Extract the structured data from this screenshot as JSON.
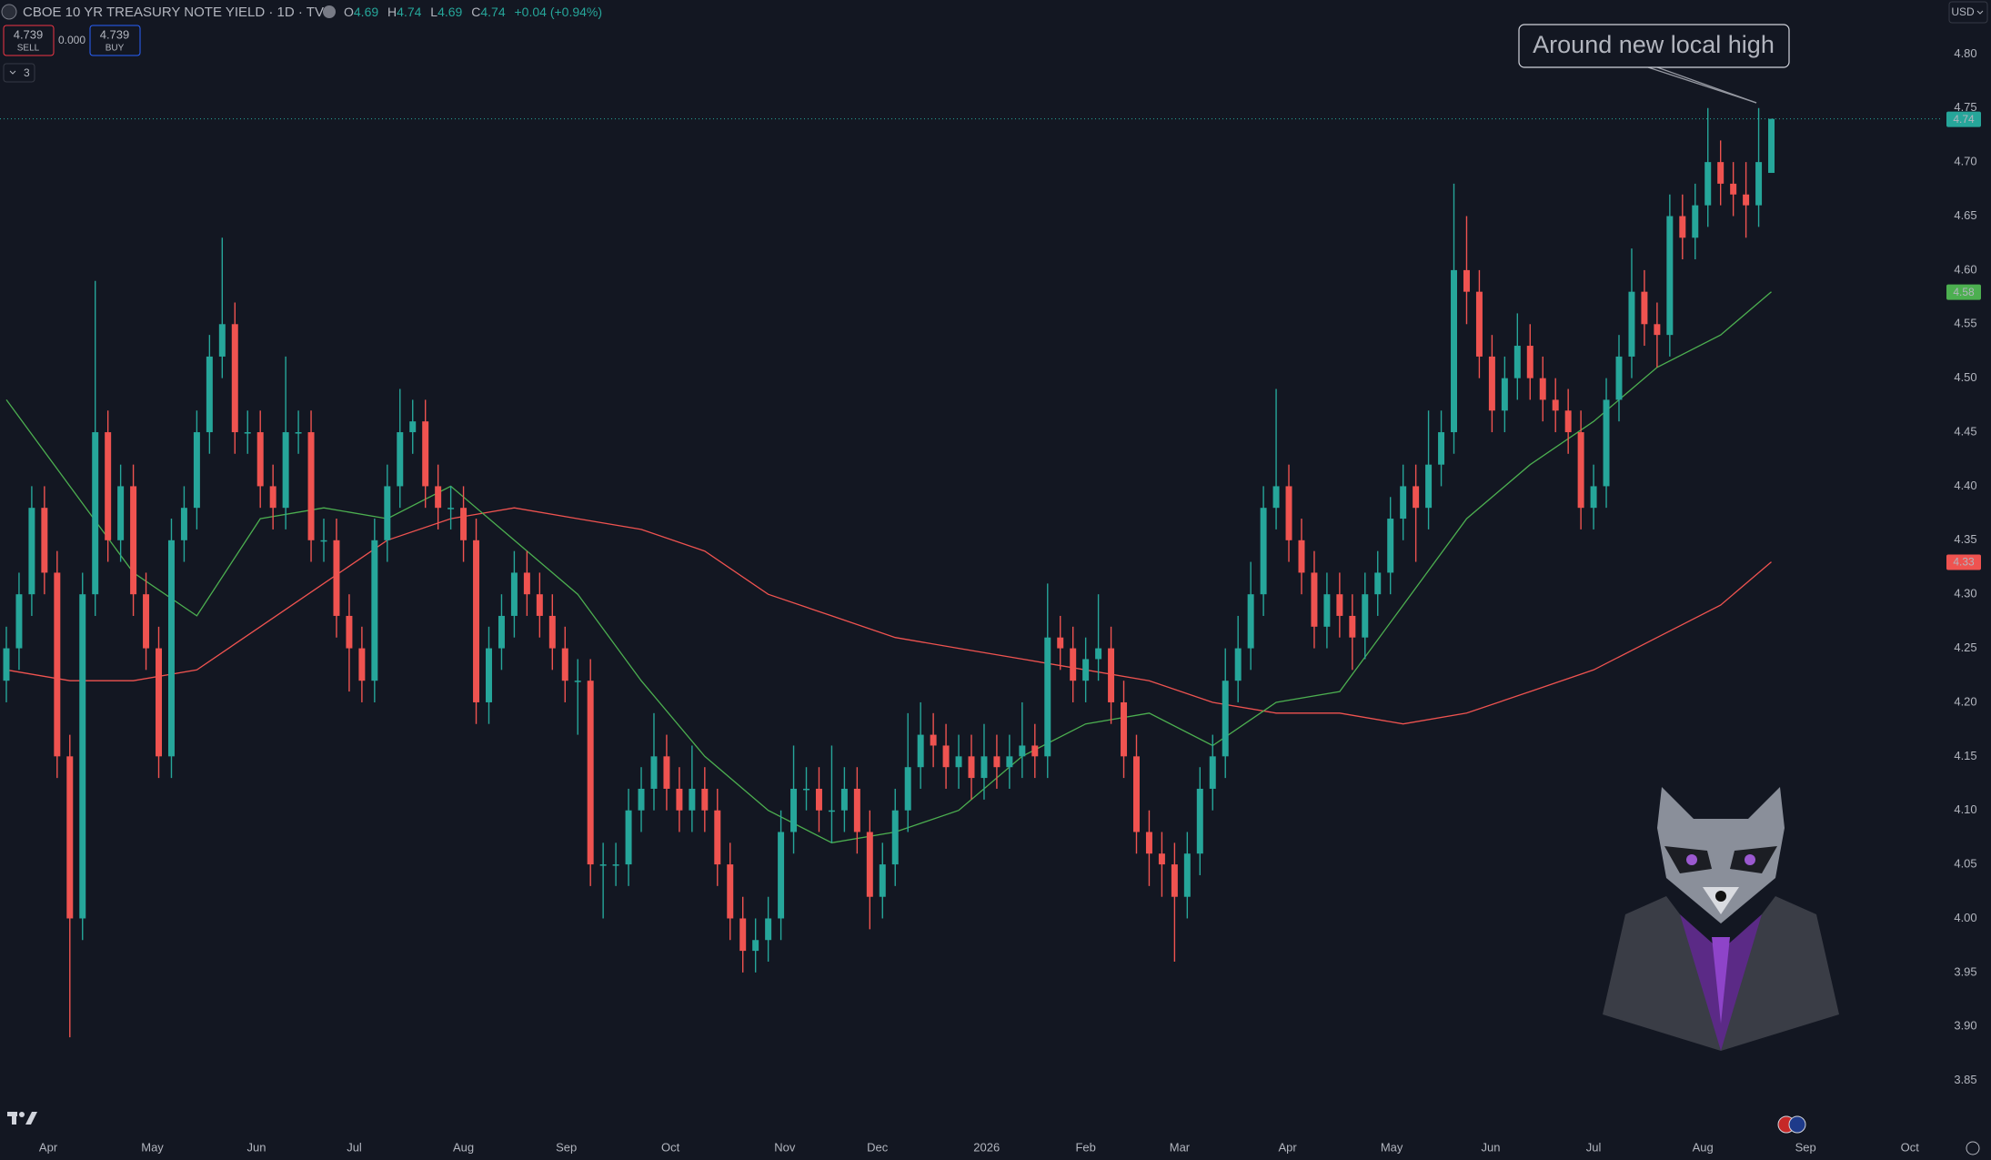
{
  "header": {
    "symbol": "CBOE 10 YR TREASURY NOTE YIELD · 1D · TVC",
    "ohlc_labels": [
      "O",
      "H",
      "L",
      "C"
    ],
    "change": "+0.04 (+0.94%)",
    "sell_price": "4.739",
    "sell_label": "SELL",
    "spread": "0.000",
    "buy_price": "4.739",
    "buy_label": "BUY",
    "indicators_count": "3",
    "currency": "USD"
  },
  "chart_data": {
    "type": "candlestick",
    "annotation": "Around new local high",
    "x": [
      0,
      1,
      2,
      3,
      4,
      5,
      6,
      7,
      8,
      9,
      10,
      11,
      12,
      13,
      14,
      15,
      16,
      17,
      18,
      19,
      20,
      21,
      22,
      23,
      24,
      25,
      26,
      27,
      28,
      29,
      30,
      31,
      32,
      33,
      34,
      35,
      36,
      37,
      38,
      39,
      40,
      41,
      42,
      43,
      44,
      45,
      46,
      47,
      48,
      49,
      50,
      51,
      52,
      53,
      54,
      55,
      56,
      57,
      58,
      59,
      60,
      61,
      62,
      63,
      64,
      65,
      66,
      67,
      68,
      69,
      70,
      71,
      72,
      73,
      74,
      75,
      76,
      77,
      78,
      79,
      80,
      81,
      82,
      83,
      84,
      85,
      86,
      87,
      88,
      89,
      90,
      91,
      92,
      93,
      94,
      95,
      96,
      97,
      98,
      99,
      100,
      101,
      102,
      103,
      104,
      105,
      106,
      107,
      108,
      109,
      110,
      111,
      112,
      113,
      114,
      115,
      116,
      117,
      118,
      119,
      120,
      121,
      122,
      123,
      124,
      125,
      126,
      127,
      128,
      129,
      130,
      131,
      132,
      133,
      134,
      135,
      136,
      137,
      138,
      139
    ],
    "open": [
      4.22,
      4.25,
      4.3,
      4.38,
      4.32,
      4.15,
      4.0,
      4.3,
      4.45,
      4.35,
      4.4,
      4.3,
      4.25,
      4.15,
      4.35,
      4.38,
      4.45,
      4.52,
      4.55,
      4.45,
      4.45,
      4.4,
      4.38,
      4.45,
      4.45,
      4.35,
      4.35,
      4.28,
      4.25,
      4.22,
      4.35,
      4.4,
      4.45,
      4.46,
      4.4,
      4.38,
      4.38,
      4.35,
      4.2,
      4.25,
      4.28,
      4.32,
      4.3,
      4.28,
      4.25,
      4.22,
      4.22,
      4.05,
      4.05,
      4.05,
      4.1,
      4.12,
      4.15,
      4.12,
      4.1,
      4.12,
      4.1,
      4.05,
      4.0,
      3.97,
      3.98,
      4.0,
      4.08,
      4.12,
      4.12,
      4.1,
      4.1,
      4.12,
      4.08,
      4.02,
      4.05,
      4.1,
      4.14,
      4.17,
      4.16,
      4.14,
      4.15,
      4.13,
      4.15,
      4.14,
      4.15,
      4.16,
      4.15,
      4.26,
      4.25,
      4.22,
      4.24,
      4.25,
      4.2,
      4.15,
      4.08,
      4.06,
      4.05,
      4.02,
      4.06,
      4.12,
      4.15,
      4.22,
      4.25,
      4.3,
      4.38,
      4.4,
      4.35,
      4.32,
      4.27,
      4.3,
      4.28,
      4.26,
      4.3,
      4.32,
      4.37,
      4.4,
      4.38,
      4.42,
      4.45,
      4.6,
      4.58,
      4.52,
      4.47,
      4.5,
      4.53,
      4.5,
      4.48,
      4.47,
      4.45,
      4.38,
      4.4,
      4.48,
      4.52,
      4.58,
      4.55,
      4.54,
      4.65,
      4.63,
      4.66,
      4.7,
      4.68,
      4.67,
      4.66,
      4.69
    ],
    "high": [
      4.27,
      4.32,
      4.4,
      4.4,
      4.34,
      4.17,
      4.32,
      4.59,
      4.47,
      4.42,
      4.42,
      4.32,
      4.27,
      4.37,
      4.4,
      4.47,
      4.54,
      4.63,
      4.57,
      4.47,
      4.47,
      4.42,
      4.52,
      4.47,
      4.47,
      4.37,
      4.37,
      4.3,
      4.27,
      4.37,
      4.42,
      4.49,
      4.48,
      4.48,
      4.42,
      4.4,
      4.4,
      4.37,
      4.27,
      4.3,
      4.34,
      4.34,
      4.32,
      4.3,
      4.27,
      4.24,
      4.24,
      4.07,
      4.07,
      4.12,
      4.14,
      4.19,
      4.17,
      4.14,
      4.16,
      4.14,
      4.12,
      4.07,
      4.02,
      4.0,
      4.02,
      4.1,
      4.16,
      4.14,
      4.14,
      4.16,
      4.14,
      4.14,
      4.1,
      4.07,
      4.12,
      4.19,
      4.2,
      4.19,
      4.18,
      4.17,
      4.17,
      4.18,
      4.17,
      4.17,
      4.2,
      4.18,
      4.31,
      4.28,
      4.27,
      4.26,
      4.3,
      4.27,
      4.22,
      4.17,
      4.1,
      4.08,
      4.07,
      4.08,
      4.14,
      4.17,
      4.25,
      4.28,
      4.33,
      4.4,
      4.49,
      4.42,
      4.37,
      4.34,
      4.32,
      4.32,
      4.3,
      4.32,
      4.34,
      4.39,
      4.42,
      4.42,
      4.47,
      4.47,
      4.68,
      4.65,
      4.6,
      4.54,
      4.52,
      4.56,
      4.55,
      4.52,
      4.5,
      4.49,
      4.47,
      4.42,
      4.5,
      4.54,
      4.62,
      4.6,
      4.57,
      4.67,
      4.67,
      4.68,
      4.75,
      4.72,
      4.7,
      4.7,
      4.75,
      4.74
    ],
    "low": [
      4.2,
      4.23,
      4.28,
      4.3,
      4.13,
      3.89,
      3.98,
      4.28,
      4.33,
      4.33,
      4.28,
      4.23,
      4.13,
      4.13,
      4.33,
      4.36,
      4.43,
      4.5,
      4.43,
      4.43,
      4.38,
      4.36,
      4.36,
      4.43,
      4.33,
      4.33,
      4.26,
      4.21,
      4.2,
      4.2,
      4.33,
      4.38,
      4.43,
      4.38,
      4.36,
      4.36,
      4.33,
      4.18,
      4.18,
      4.23,
      4.26,
      4.28,
      4.26,
      4.23,
      4.2,
      4.17,
      4.03,
      4.0,
      4.03,
      4.03,
      4.08,
      4.1,
      4.1,
      4.08,
      4.08,
      4.08,
      4.03,
      3.98,
      3.95,
      3.95,
      3.96,
      3.98,
      4.06,
      4.1,
      4.08,
      4.07,
      4.08,
      4.06,
      3.99,
      4.0,
      4.03,
      4.08,
      4.12,
      4.14,
      4.12,
      4.12,
      4.11,
      4.11,
      4.12,
      4.12,
      4.13,
      4.13,
      4.13,
      4.23,
      4.2,
      4.2,
      4.22,
      4.18,
      4.13,
      4.06,
      4.03,
      4.02,
      3.96,
      4.0,
      4.04,
      4.1,
      4.13,
      4.2,
      4.23,
      4.28,
      4.36,
      4.33,
      4.3,
      4.25,
      4.25,
      4.26,
      4.23,
      4.24,
      4.28,
      4.3,
      4.35,
      4.33,
      4.36,
      4.4,
      4.43,
      4.55,
      4.5,
      4.45,
      4.45,
      4.48,
      4.48,
      4.46,
      4.45,
      4.43,
      4.36,
      4.36,
      4.38,
      4.46,
      4.5,
      4.53,
      4.51,
      4.52,
      4.61,
      4.61,
      4.64,
      4.66,
      4.65,
      4.63,
      4.64,
      4.69
    ],
    "close": [
      4.25,
      4.3,
      4.38,
      4.32,
      4.15,
      4.0,
      4.3,
      4.45,
      4.35,
      4.4,
      4.3,
      4.25,
      4.15,
      4.35,
      4.38,
      4.45,
      4.52,
      4.55,
      4.45,
      4.45,
      4.4,
      4.38,
      4.45,
      4.45,
      4.35,
      4.35,
      4.28,
      4.25,
      4.22,
      4.35,
      4.4,
      4.45,
      4.46,
      4.4,
      4.38,
      4.38,
      4.35,
      4.2,
      4.25,
      4.28,
      4.32,
      4.3,
      4.28,
      4.25,
      4.22,
      4.22,
      4.05,
      4.05,
      4.05,
      4.1,
      4.12,
      4.15,
      4.12,
      4.1,
      4.12,
      4.1,
      4.05,
      4.0,
      3.97,
      3.98,
      4.0,
      4.08,
      4.12,
      4.12,
      4.1,
      4.1,
      4.12,
      4.08,
      4.02,
      4.05,
      4.1,
      4.14,
      4.17,
      4.16,
      4.14,
      4.15,
      4.13,
      4.15,
      4.14,
      4.15,
      4.16,
      4.15,
      4.26,
      4.25,
      4.22,
      4.24,
      4.25,
      4.2,
      4.15,
      4.08,
      4.06,
      4.05,
      4.02,
      4.06,
      4.12,
      4.15,
      4.22,
      4.25,
      4.3,
      4.38,
      4.4,
      4.35,
      4.32,
      4.27,
      4.3,
      4.28,
      4.26,
      4.3,
      4.32,
      4.37,
      4.4,
      4.38,
      4.42,
      4.45,
      4.6,
      4.58,
      4.52,
      4.47,
      4.5,
      4.53,
      4.5,
      4.48,
      4.47,
      4.45,
      4.38,
      4.4,
      4.48,
      4.52,
      4.58,
      4.55,
      4.54,
      4.65,
      4.63,
      4.66,
      4.7,
      4.68,
      4.67,
      4.66,
      4.7,
      4.74
    ],
    "up_color": "#26a69a",
    "down_color": "#ef5350",
    "series": [
      {
        "color": "#ef5350",
        "x": [
          0,
          5,
          10,
          15,
          20,
          25,
          30,
          35,
          40,
          45,
          50,
          55,
          60,
          65,
          70,
          75,
          80,
          85,
          90,
          95,
          100,
          105,
          110,
          115,
          120,
          125,
          130,
          135,
          139
        ],
        "values": [
          4.23,
          4.22,
          4.22,
          4.23,
          4.27,
          4.31,
          4.35,
          4.37,
          4.38,
          4.37,
          4.36,
          4.34,
          4.3,
          4.28,
          4.26,
          4.25,
          4.24,
          4.23,
          4.22,
          4.2,
          4.19,
          4.19,
          4.18,
          4.19,
          4.21,
          4.23,
          4.26,
          4.29,
          4.33
        ]
      },
      {
        "color": "#4caf50",
        "x": [
          0,
          5,
          10,
          15,
          20,
          25,
          30,
          35,
          40,
          45,
          50,
          55,
          60,
          65,
          70,
          75,
          80,
          85,
          90,
          95,
          100,
          105,
          110,
          115,
          120,
          125,
          130,
          135,
          139
        ],
        "values": [
          4.48,
          4.4,
          4.32,
          4.28,
          4.37,
          4.38,
          4.37,
          4.4,
          4.35,
          4.3,
          4.22,
          4.15,
          4.1,
          4.07,
          4.08,
          4.1,
          4.15,
          4.18,
          4.19,
          4.16,
          4.2,
          4.21,
          4.29,
          4.37,
          4.42,
          4.46,
          4.51,
          4.54,
          4.58
        ]
      }
    ],
    "xlim": [
      -0.5,
      152.5
    ],
    "xticks": [
      {
        "value": 3.3,
        "label": "Apr"
      },
      {
        "value": 11.5,
        "label": "May"
      },
      {
        "value": 19.7,
        "label": "Jun"
      },
      {
        "value": 27.4,
        "label": "Jul"
      },
      {
        "value": 36,
        "label": "Aug"
      },
      {
        "value": 44.1,
        "label": "Sep"
      },
      {
        "value": 52.3,
        "label": "Oct"
      },
      {
        "value": 61.3,
        "label": "Nov"
      },
      {
        "value": 68.6,
        "label": "Dec"
      },
      {
        "value": 77.2,
        "label": "2026"
      },
      {
        "value": 85,
        "label": "Feb"
      },
      {
        "value": 92.4,
        "label": "Mar"
      },
      {
        "value": 100.9,
        "label": "Apr"
      },
      {
        "value": 109.1,
        "label": "May"
      },
      {
        "value": 116.9,
        "label": "Jun"
      },
      {
        "value": 125,
        "label": "Jul"
      },
      {
        "value": 133.6,
        "label": "Aug"
      },
      {
        "value": 141.7,
        "label": "Sep"
      },
      {
        "value": 149.9,
        "label": "Oct"
      }
    ],
    "ylim": [
      3.8,
      4.85
    ],
    "yticks": [
      {
        "value": 3.85,
        "label": "3.85"
      },
      {
        "value": 3.9,
        "label": "3.90"
      },
      {
        "value": 3.95,
        "label": "3.95"
      },
      {
        "value": 4.0,
        "label": "4.00"
      },
      {
        "value": 4.05,
        "label": "4.05"
      },
      {
        "value": 4.1,
        "label": "4.10"
      },
      {
        "value": 4.15,
        "label": "4.15"
      },
      {
        "value": 4.2,
        "label": "4.20"
      },
      {
        "value": 4.25,
        "label": "4.25"
      },
      {
        "value": 4.3,
        "label": "4.30"
      },
      {
        "value": 4.35,
        "label": "4.35"
      },
      {
        "value": 4.4,
        "label": "4.40"
      },
      {
        "value": 4.45,
        "label": "4.45"
      },
      {
        "value": 4.5,
        "label": "4.50"
      },
      {
        "value": 4.55,
        "label": "4.55"
      },
      {
        "value": 4.6,
        "label": "4.60"
      },
      {
        "value": 4.65,
        "label": "4.65"
      },
      {
        "value": 4.7,
        "label": "4.70"
      },
      {
        "value": 4.75,
        "label": "4.75"
      },
      {
        "value": 4.8,
        "label": "4.80"
      }
    ],
    "grid": false
  }
}
